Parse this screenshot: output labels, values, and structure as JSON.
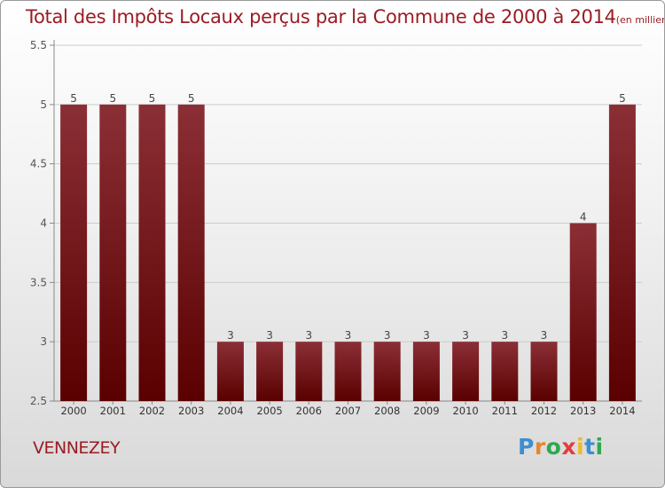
{
  "title": "Total des Impôts Locaux perçus par la Commune de 2000 à 2014",
  "title_unit": "(en milliers d'€)",
  "commune": "VENNEZEY",
  "logo": {
    "text": "Proxiti",
    "letter_colors": [
      "#3d8fd1",
      "#e8862a",
      "#2fa84f",
      "#e23c3c",
      "#f0b92a",
      "#3d8fd1",
      "#2fa84f"
    ]
  },
  "colors": {
    "bar_top": "#8b2f36",
    "bar_bottom": "#5a0000",
    "text_red": "#9b1c24",
    "grid": "#cccccc"
  },
  "chart_data": {
    "type": "bar",
    "title": "Total des Impôts Locaux perçus par la Commune de 2000 à 2014",
    "categories": [
      "2000",
      "2001",
      "2002",
      "2003",
      "2004",
      "2005",
      "2006",
      "2007",
      "2008",
      "2009",
      "2010",
      "2011",
      "2012",
      "2013",
      "2014"
    ],
    "values": [
      5,
      5,
      5,
      5,
      3,
      3,
      3,
      3,
      3,
      3,
      3,
      3,
      3,
      4,
      5
    ],
    "ylim": [
      2.5,
      5.5
    ],
    "yticks": [
      "2.5",
      "3",
      "3.5",
      "4",
      "4.5",
      "5",
      "5.5"
    ],
    "grid": true,
    "xlabel": "",
    "ylabel": ""
  }
}
